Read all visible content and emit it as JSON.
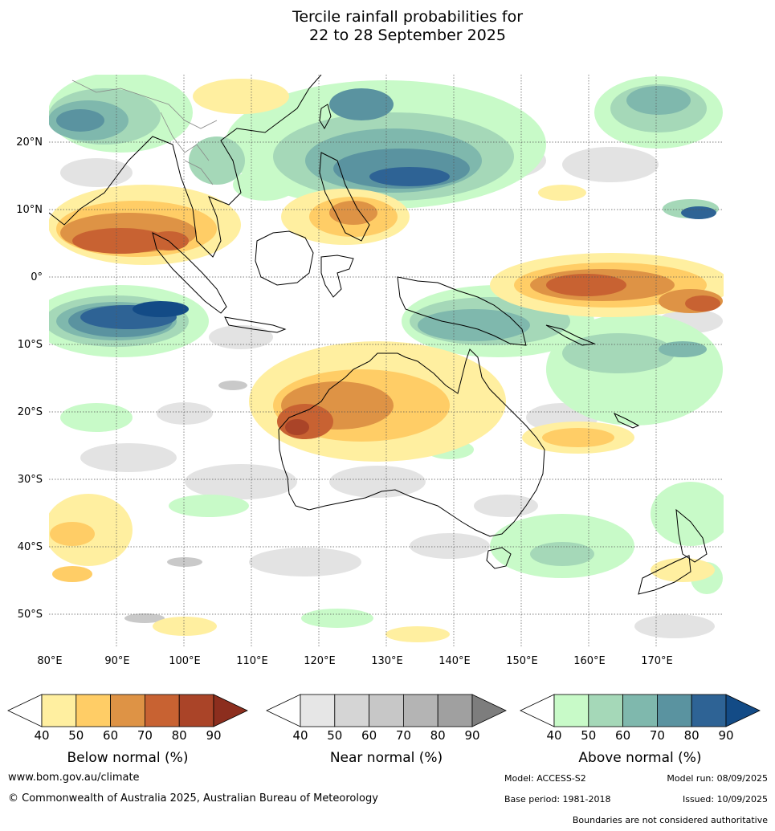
{
  "title": {
    "line1": "Tercile rainfall probabilities for",
    "line2": "22 to 28 September 2025"
  },
  "map": {
    "lat_labels": [
      "20°N",
      "10°N",
      "0°",
      "10°S",
      "20°S",
      "30°S",
      "40°S",
      "50°S"
    ],
    "lon_labels": [
      "80°E",
      "90°E",
      "100°E",
      "110°E",
      "120°E",
      "130°E",
      "140°E",
      "150°E",
      "160°E",
      "170°E"
    ]
  },
  "colorbars": [
    {
      "id": "below",
      "caption": "Below normal (%)",
      "ticks": [
        "40",
        "50",
        "60",
        "70",
        "80",
        "90"
      ],
      "colors": [
        "#ffefa0",
        "#ffcd66",
        "#de9345",
        "#c86232",
        "#aa4428",
        "#8c2e1e"
      ]
    },
    {
      "id": "near",
      "caption": "Near normal (%)",
      "ticks": [
        "40",
        "50",
        "60",
        "70",
        "80",
        "90"
      ],
      "colors": [
        "#e6e6e6",
        "#d5d5d5",
        "#c7c7c7",
        "#b4b4b4",
        "#a0a0a0",
        "#7d7d7d"
      ]
    },
    {
      "id": "above",
      "caption": "Above normal (%)",
      "ticks": [
        "40",
        "50",
        "60",
        "70",
        "80",
        "90"
      ],
      "colors": [
        "#c8fac8",
        "#a5d8b8",
        "#7fb8ad",
        "#5a93a0",
        "#2e6395",
        "#134b86"
      ]
    }
  ],
  "footer": {
    "website": "www.bom.gov.au/climate",
    "copyright": "© Commonwealth of Australia 2025, Australian Bureau of Meteorology",
    "model": "Model: ACCESS-S2",
    "model_run": "Model run: 08/09/2025",
    "base_period": "Base period: 1981-2018",
    "issued": "Issued: 10/09/2025",
    "disclaimer": "Boundaries are not considered authoritative"
  }
}
